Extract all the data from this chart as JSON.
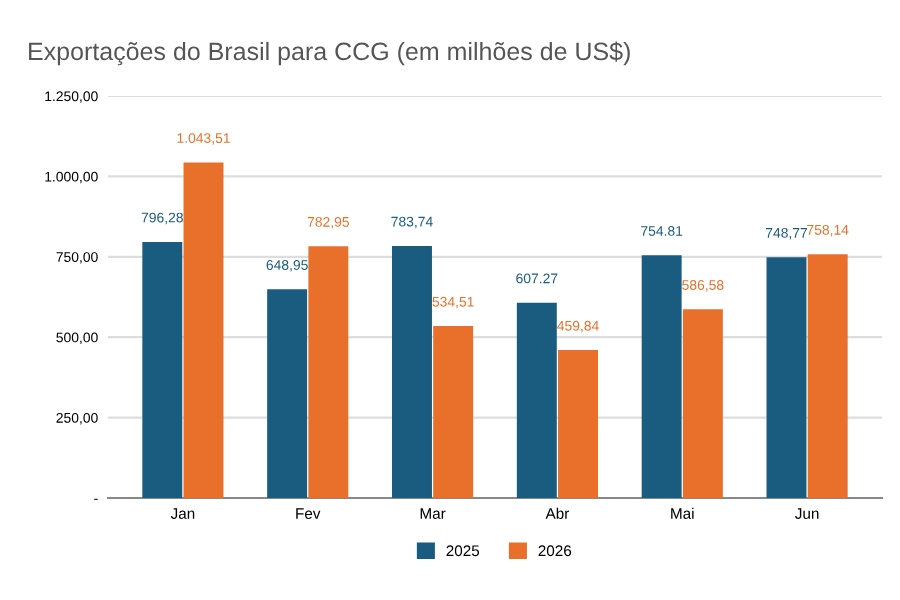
{
  "chart_data": {
    "type": "bar",
    "title": "Exportações do Brasil para CCG (em milhões de US$)",
    "categories": [
      "Jan",
      "Fev",
      "Mar",
      "Abr",
      "Mai",
      "Jun"
    ],
    "series": [
      {
        "name": "2025",
        "color": "#1a5c80",
        "values": [
          796.28,
          648.95,
          783.74,
          607.27,
          754.81,
          748.77
        ],
        "value_labels": [
          "796,28",
          "648,95",
          "783,74",
          "607.27",
          "754.81",
          "748,77"
        ]
      },
      {
        "name": "2026",
        "color": "#e8702a",
        "values": [
          1043.51,
          782.95,
          534.51,
          459.84,
          586.58,
          758.14
        ],
        "value_labels": [
          "1.043,51",
          "782,95",
          "534,51",
          "459,84",
          "586,58",
          "758,14"
        ]
      }
    ],
    "ylim": [
      0,
      1250
    ],
    "yticks": [
      {
        "value": 0,
        "label": "-"
      },
      {
        "value": 250,
        "label": "250,00"
      },
      {
        "value": 500,
        "label": "500,00"
      },
      {
        "value": 750,
        "label": "750,00"
      },
      {
        "value": 1000,
        "label": "1.000,00"
      },
      {
        "value": 1250,
        "label": "1.250,00"
      }
    ],
    "grid": "y",
    "legend": "bottom"
  }
}
